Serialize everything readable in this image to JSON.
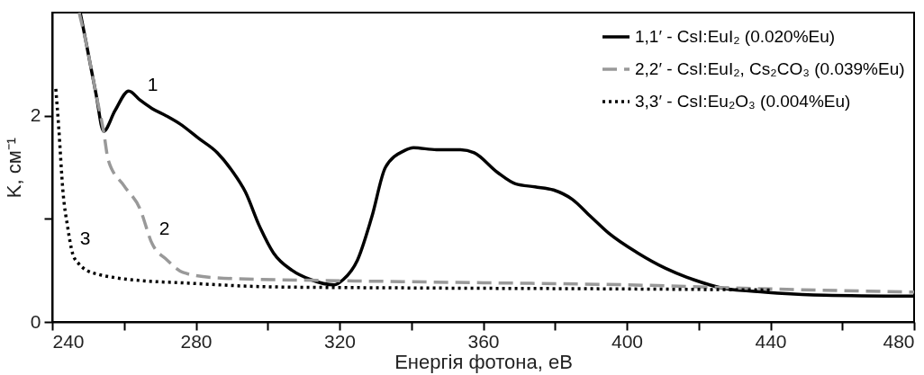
{
  "chart_data": {
    "type": "line",
    "xlabel": "Енергія фотона, еВ",
    "ylabel": "K, см⁻¹",
    "xlim": [
      240,
      480
    ],
    "ylim": [
      0,
      3
    ],
    "xticks": [
      240,
      {
        "value": 260,
        "label": null
      },
      280,
      {
        "value": 300,
        "label": null
      },
      320,
      {
        "value": 340,
        "label": null
      },
      360,
      {
        "value": 380,
        "label": null
      },
      400,
      {
        "value": 420,
        "label": null
      },
      440,
      {
        "value": 460,
        "label": null
      },
      480
    ],
    "yticks": [
      0,
      {
        "value": 1,
        "label": null
      },
      2
    ],
    "grid": false,
    "legend": "top right",
    "marker": "none",
    "series": [
      {
        "name": "1,1′ - CsI:EuI₂ (0.020%Eu)",
        "color": "#000000",
        "line_style": "solid",
        "x": [
          247.8,
          249.6,
          252.2,
          254.3,
          257.5,
          261.3,
          264.5,
          267.8,
          271.7,
          275.6,
          280.8,
          286,
          290,
          293.8,
          297.7,
          301.6,
          306.8,
          312,
          318.5,
          321,
          325,
          329,
          332.8,
          338,
          340.6,
          347,
          353.7,
          357.5,
          364,
          369,
          374.4,
          379.6,
          384.8,
          390,
          395,
          403,
          410.8,
          418.6,
          426.4,
          434,
          442,
          455,
          480
        ],
        "values": [
          3.0,
          2.68,
          2.21,
          1.85,
          2.05,
          2.24,
          2.15,
          2.07,
          2.0,
          1.92,
          1.78,
          1.64,
          1.47,
          1.26,
          0.93,
          0.67,
          0.5,
          0.41,
          0.36,
          0.41,
          0.6,
          1.02,
          1.5,
          1.66,
          1.69,
          1.67,
          1.67,
          1.64,
          1.45,
          1.34,
          1.31,
          1.28,
          1.19,
          1.02,
          0.86,
          0.67,
          0.52,
          0.41,
          0.33,
          0.3,
          0.28,
          0.26,
          0.25
        ]
      },
      {
        "name": "2,2′ - CsI:EuI₂, Cs₂CO₃ (0.039%Eu)",
        "color": "#999999",
        "line_style": "dashed",
        "x": [
          247.5,
          249.6,
          252.2,
          254.3,
          255.6,
          260,
          264.4,
          267.8,
          272,
          276.4,
          285,
          302,
          320,
          360,
          400,
          440,
          480
        ],
        "values": [
          3.0,
          2.68,
          2.21,
          1.85,
          1.57,
          1.32,
          1.1,
          0.76,
          0.6,
          0.48,
          0.43,
          0.41,
          0.4,
          0.38,
          0.36,
          0.32,
          0.29
        ]
      },
      {
        "name": "3,3′ - CsI:Eu₂O₃ (0.004%Eu)",
        "color": "#000000",
        "line_style": "dotted",
        "x": [
          241,
          241.8,
          243,
          244.3,
          245.7,
          247.5,
          249.6,
          253,
          257.4,
          265,
          275.6,
          301.6,
          340,
          400,
          440
        ],
        "values": [
          2.26,
          1.89,
          1.26,
          0.92,
          0.66,
          0.56,
          0.5,
          0.46,
          0.43,
          0.4,
          0.38,
          0.34,
          0.33,
          0.32,
          0.31
        ]
      }
    ],
    "annotations": [
      {
        "text": "1",
        "x": 264.5,
        "y": 2.15
      },
      {
        "text": "2",
        "x": 267.8,
        "y": 0.76
      },
      {
        "text": "3",
        "x": 245.7,
        "y": 0.66
      }
    ]
  }
}
